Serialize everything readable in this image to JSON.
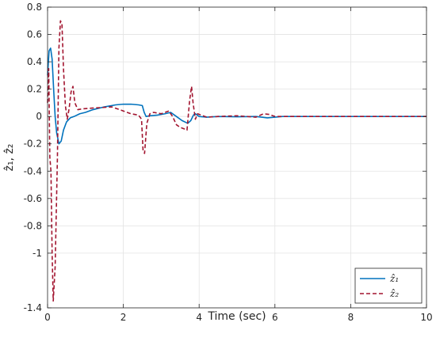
{
  "chart_data": {
    "type": "line",
    "title": "",
    "xlabel": "Time (sec)",
    "ylabel": "ẑ₁, ẑ₂",
    "xlim": [
      0,
      10
    ],
    "ylim": [
      -1.4,
      0.8
    ],
    "grid": true,
    "legend_position": "bottom-right",
    "x_ticks": [
      0,
      2,
      4,
      6,
      8,
      10
    ],
    "x_tick_labels": [
      "0",
      "2",
      "4",
      "6",
      "8",
      "10"
    ],
    "y_ticks": [
      0.8,
      0.6,
      0.4,
      0.2,
      0,
      -0.2,
      -0.4,
      -0.6,
      -0.8,
      -1,
      -1.4
    ],
    "y_tick_labels": [
      "0.8",
      "0.6",
      "0.4",
      "0.2",
      "0",
      "-0.2",
      "-0.4",
      "-0.6",
      "-0.8",
      "-1",
      "-1.4"
    ],
    "series": [
      {
        "name": "ẑ₁",
        "color": "#0072BD",
        "style": "solid",
        "x": [
          0,
          0.04,
          0.08,
          0.12,
          0.16,
          0.2,
          0.24,
          0.3,
          0.36,
          0.42,
          0.5,
          0.6,
          0.7,
          0.85,
          1.0,
          1.2,
          1.5,
          1.8,
          2.0,
          2.2,
          2.4,
          2.5,
          2.55,
          2.6,
          2.7,
          2.9,
          3.1,
          3.25,
          3.4,
          3.55,
          3.7,
          3.78,
          3.85,
          3.9,
          4.0,
          4.2,
          4.5,
          5.0,
          5.5,
          5.8,
          6.0,
          6.2,
          7,
          8,
          9,
          10
        ],
        "y": [
          0.3,
          0.48,
          0.5,
          0.42,
          0.2,
          0.0,
          -0.12,
          -0.2,
          -0.18,
          -0.1,
          -0.04,
          -0.01,
          0.0,
          0.02,
          0.03,
          0.05,
          0.07,
          0.085,
          0.09,
          0.09,
          0.085,
          0.08,
          0.03,
          0.0,
          0.005,
          0.01,
          0.02,
          0.03,
          0.0,
          -0.03,
          -0.05,
          -0.03,
          0.01,
          0.02,
          0.0,
          -0.005,
          0.0,
          -0.002,
          0.0,
          -0.01,
          -0.005,
          0.0,
          0.0,
          0.0,
          0.0,
          0.0
        ]
      },
      {
        "name": "ẑ₂",
        "color": "#A2142F",
        "style": "dashed",
        "x": [
          0,
          0.03,
          0.06,
          0.09,
          0.12,
          0.15,
          0.2,
          0.26,
          0.3,
          0.34,
          0.38,
          0.42,
          0.47,
          0.52,
          0.57,
          0.62,
          0.67,
          0.72,
          0.8,
          0.9,
          1.1,
          1.4,
          1.7,
          2.0,
          2.2,
          2.4,
          2.48,
          2.52,
          2.56,
          2.62,
          2.7,
          2.8,
          3.0,
          3.2,
          3.3,
          3.4,
          3.5,
          3.6,
          3.68,
          3.75,
          3.8,
          3.84,
          3.9,
          3.96,
          4.05,
          4.2,
          4.5,
          5.0,
          5.5,
          5.7,
          5.85,
          6.0,
          6.5,
          7,
          8,
          9,
          10
        ],
        "y": [
          0.1,
          0.35,
          -0.3,
          -0.4,
          -1.0,
          -1.35,
          -1.1,
          -0.3,
          0.5,
          0.7,
          0.68,
          0.35,
          0.08,
          -0.02,
          0.06,
          0.18,
          0.22,
          0.1,
          0.05,
          0.055,
          0.06,
          0.065,
          0.07,
          0.04,
          0.02,
          0.01,
          -0.02,
          -0.25,
          -0.27,
          -0.05,
          0.02,
          0.03,
          0.02,
          0.04,
          0.0,
          -0.06,
          -0.08,
          -0.09,
          -0.1,
          0.12,
          0.22,
          0.1,
          -0.02,
          0.02,
          0.01,
          -0.005,
          0.0,
          0.005,
          -0.005,
          0.02,
          0.015,
          0.0,
          0.0,
          0.0,
          0.0,
          0.0,
          0.0
        ]
      }
    ]
  }
}
